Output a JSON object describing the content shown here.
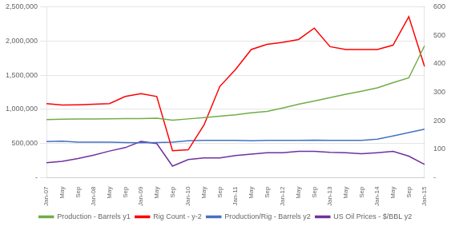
{
  "chart_data": {
    "type": "line",
    "categories": [
      "Jan-07",
      "May",
      "Sep",
      "Jan-08",
      "May",
      "Sep",
      "Jan-09",
      "May",
      "Sep",
      "Jan-10",
      "May",
      "Sep",
      "Jan-11",
      "May",
      "Sep",
      "Jan-12",
      "May",
      "Sep",
      "Jan-13",
      "May",
      "Sep",
      "Jan-14",
      "May",
      "Sep",
      "Jan-15"
    ],
    "series": [
      {
        "name": "Production - Barrels y1",
        "color": "#70AD47",
        "axis": "y",
        "values": [
          850000,
          855000,
          858000,
          858000,
          862000,
          865000,
          865000,
          870000,
          840000,
          860000,
          880000,
          900000,
          920000,
          950000,
          970000,
          1020000,
          1075000,
          1120000,
          1170000,
          1220000,
          1265000,
          1315000,
          1390000,
          1460000,
          1930000
        ]
      },
      {
        "name": "Rig Count - y-2",
        "color": "#FF0000",
        "axis": "y2",
        "values": [
          260,
          255,
          256,
          258,
          260,
          285,
          295,
          285,
          95,
          98,
          185,
          320,
          380,
          450,
          468,
          475,
          485,
          525,
          460,
          450,
          450,
          450,
          465,
          565,
          390
        ]
      },
      {
        "name": "Production/Rig - Barrels y2",
        "color": "#4472C4",
        "axis": "y",
        "values": [
          530000,
          535000,
          520000,
          520000,
          520000,
          515000,
          510000,
          515000,
          520000,
          540000,
          545000,
          545000,
          545000,
          540000,
          545000,
          545000,
          545000,
          548000,
          545000,
          545000,
          545000,
          565000,
          610000,
          660000,
          710000
        ]
      },
      {
        "name": "US Oil Prices - $/BBL y2",
        "color": "#7030A0",
        "axis": "y",
        "values": [
          220000,
          240000,
          280000,
          330000,
          390000,
          440000,
          530000,
          500000,
          170000,
          265000,
          290000,
          290000,
          325000,
          345000,
          365000,
          365000,
          385000,
          385000,
          370000,
          365000,
          350000,
          365000,
          385000,
          315000,
          195000
        ]
      }
    ],
    "ylim": [
      0,
      2500000
    ],
    "yticks": [
      {
        "value": 0,
        "label": "-"
      },
      {
        "value": 500000,
        "label": "500,000"
      },
      {
        "value": 1000000,
        "label": "1,000,000"
      },
      {
        "value": 1500000,
        "label": "1,500,000"
      },
      {
        "value": 2000000,
        "label": "2,000,000"
      },
      {
        "value": 2500000,
        "label": "2,500,000"
      }
    ],
    "y2lim": [
      0,
      600
    ],
    "y2ticks": [
      {
        "value": 0,
        "label": "-"
      },
      100,
      200,
      300,
      400,
      500,
      600
    ],
    "grid": true,
    "legend": "bottom"
  }
}
